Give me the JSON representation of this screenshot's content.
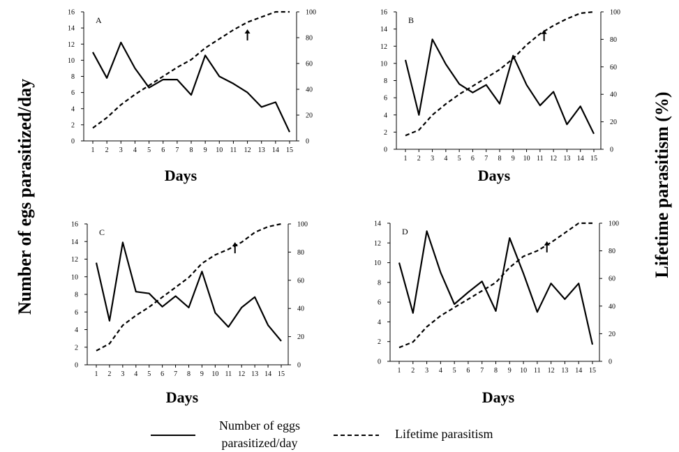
{
  "y_axis_left_label": "Number of egs parasitized/day",
  "y_axis_right_label": "Lifetime parasitism (%)",
  "legend": {
    "solid_label_line1": "Number of eggs",
    "solid_label_line2": "parasitized/day",
    "dashed_label": "Lifetime parasitism"
  },
  "chart_data": [
    {
      "type": "line",
      "panel": "A",
      "xlabel": "Days",
      "x": [
        1,
        2,
        3,
        4,
        5,
        6,
        7,
        8,
        9,
        10,
        11,
        12,
        13,
        14,
        15
      ],
      "y_left_ticks": [
        0,
        2,
        4,
        6,
        8,
        10,
        12,
        14,
        16
      ],
      "y_right_ticks": [
        0,
        20,
        40,
        60,
        80,
        100
      ],
      "ylim_left": [
        0,
        16
      ],
      "ylim_right": [
        0,
        100
      ],
      "arrow_day": 12,
      "series": [
        {
          "name": "Number of eggs parasitized/day",
          "axis": "left",
          "style": "solid",
          "values": [
            11.0,
            7.8,
            12.2,
            9.0,
            6.6,
            7.6,
            7.6,
            5.7,
            10.6,
            8.0,
            7.1,
            6.0,
            4.2,
            4.8,
            1.1
          ]
        },
        {
          "name": "Lifetime parasitism",
          "axis": "right",
          "style": "dashed",
          "values": [
            10,
            18,
            28,
            36,
            43,
            50,
            57,
            63,
            72,
            79,
            86,
            92,
            96,
            100,
            100
          ]
        }
      ]
    },
    {
      "type": "line",
      "panel": "B",
      "xlabel": "Days",
      "x": [
        1,
        2,
        3,
        4,
        5,
        6,
        7,
        8,
        9,
        10,
        11,
        12,
        13,
        14,
        15
      ],
      "y_left_ticks": [
        0,
        2,
        4,
        6,
        8,
        10,
        12,
        14,
        16
      ],
      "y_right_ticks": [
        0,
        20,
        40,
        60,
        80,
        100
      ],
      "ylim_left": [
        0,
        16
      ],
      "ylim_right": [
        0,
        100
      ],
      "arrow_day": 11.3,
      "series": [
        {
          "name": "Number of eggs parasitized/day",
          "axis": "left",
          "style": "solid",
          "values": [
            10.4,
            4.0,
            12.8,
            9.9,
            7.6,
            6.6,
            7.5,
            5.3,
            10.9,
            7.5,
            5.1,
            6.7,
            2.9,
            5.0,
            1.8
          ]
        },
        {
          "name": "Lifetime parasitism",
          "axis": "right",
          "style": "dashed",
          "values": [
            10,
            14,
            25,
            33,
            40,
            46,
            52,
            58,
            66,
            76,
            84,
            90,
            95,
            99,
            100
          ]
        }
      ]
    },
    {
      "type": "line",
      "panel": "C",
      "xlabel": "Days",
      "x": [
        1,
        2,
        3,
        4,
        5,
        6,
        7,
        8,
        9,
        10,
        11,
        12,
        13,
        14,
        15
      ],
      "y_left_ticks": [
        0,
        2,
        4,
        6,
        8,
        10,
        12,
        14,
        16
      ],
      "y_right_ticks": [
        0,
        20,
        40,
        60,
        80,
        100
      ],
      "ylim_left": [
        0,
        16
      ],
      "ylim_right": [
        0,
        100
      ],
      "arrow_day": 11.5,
      "series": [
        {
          "name": "Number of eggs parasitized/day",
          "axis": "left",
          "style": "solid",
          "values": [
            11.6,
            5.0,
            13.9,
            8.3,
            8.1,
            6.6,
            7.8,
            6.5,
            10.6,
            5.9,
            4.3,
            6.5,
            7.7,
            4.5,
            2.7
          ]
        },
        {
          "name": "Lifetime parasitism",
          "axis": "right",
          "style": "dashed",
          "values": [
            10,
            15,
            28,
            35,
            41,
            48,
            55,
            62,
            72,
            78,
            82,
            87,
            94,
            98,
            100
          ]
        }
      ]
    },
    {
      "type": "line",
      "panel": "D",
      "xlabel": "Days",
      "x": [
        1,
        2,
        3,
        4,
        5,
        6,
        7,
        8,
        9,
        10,
        11,
        12,
        13,
        14,
        15
      ],
      "y_left_ticks": [
        0,
        2,
        4,
        6,
        8,
        10,
        12,
        14
      ],
      "y_right_ticks": [
        0,
        20,
        40,
        60,
        80,
        100
      ],
      "ylim_left": [
        0,
        14
      ],
      "ylim_right": [
        0,
        100
      ],
      "arrow_day": 11.7,
      "series": [
        {
          "name": "Number of eggs parasitized/day",
          "axis": "left",
          "style": "solid",
          "values": [
            10.0,
            4.9,
            13.2,
            9.0,
            5.8,
            7.0,
            8.1,
            5.1,
            12.5,
            8.9,
            5.0,
            7.9,
            6.3,
            7.9,
            1.7
          ]
        },
        {
          "name": "Lifetime parasitism",
          "axis": "right",
          "style": "dashed",
          "values": [
            10,
            14,
            25,
            33,
            39,
            45,
            51,
            57,
            68,
            76,
            80,
            86,
            93,
            100,
            100
          ]
        }
      ]
    }
  ]
}
